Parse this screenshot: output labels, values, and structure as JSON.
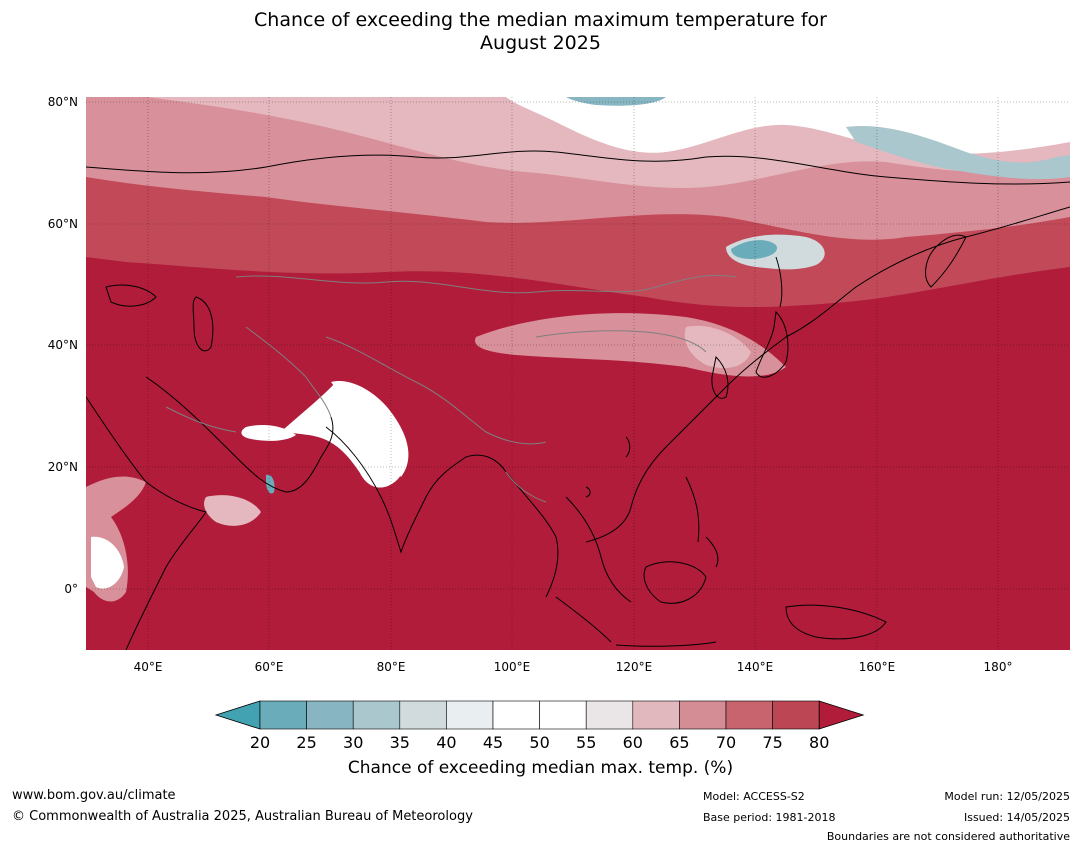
{
  "title_line1": "Chance of exceeding the median maximum temperature for",
  "title_line2": "August 2025",
  "map": {
    "lat_labels": [
      "80°N",
      "60°N",
      "40°N",
      "20°N",
      "0°"
    ],
    "lon_labels": [
      "40°E",
      "60°E",
      "80°E",
      "100°E",
      "120°E",
      "140°E",
      "160°E",
      "180°"
    ],
    "colors": {
      "ocean_fill": "#b01c3a",
      "warm_75": "#c24a58",
      "warm_70": "#cc6672",
      "warm_65": "#d8909a",
      "warm_60": "#e4b8be",
      "neutral": "#ffffff",
      "cool_40": "#e9eff1",
      "cool_35": "#d1dbde",
      "cool_30": "#a9c7cd",
      "cool_25": "#87b6c2",
      "cool_20": "#6aacba",
      "coastline": "#000000",
      "borders": "#7f7f7f"
    }
  },
  "colorbar": {
    "ticks": [
      "20",
      "25",
      "30",
      "35",
      "40",
      "45",
      "50",
      "55",
      "60",
      "65",
      "70",
      "75",
      "80"
    ],
    "colors": [
      "#6aacba",
      "#87b6c2",
      "#a9c7cd",
      "#d1dbde",
      "#e9eff1",
      "#ffffff",
      "#ffffff",
      "#eae6e8",
      "#e1b8be",
      "#d48c95",
      "#c7646e",
      "#bd4654"
    ],
    "below_color": "#43a2b1",
    "above_color": "#b01c3a",
    "caption": "Chance of exceeding median max. temp. (%)"
  },
  "footer": {
    "website": "www.bom.gov.au/climate",
    "copyright": "© Commonwealth of Australia 2025, Australian Bureau of Meteorology",
    "model": "Model: ACCESS-S2",
    "base_period": "Base period: 1981-2018",
    "model_run": "Model run: 12/05/2025",
    "issued": "Issued: 14/05/2025",
    "disclaimer": "Boundaries are not considered authoritative"
  }
}
